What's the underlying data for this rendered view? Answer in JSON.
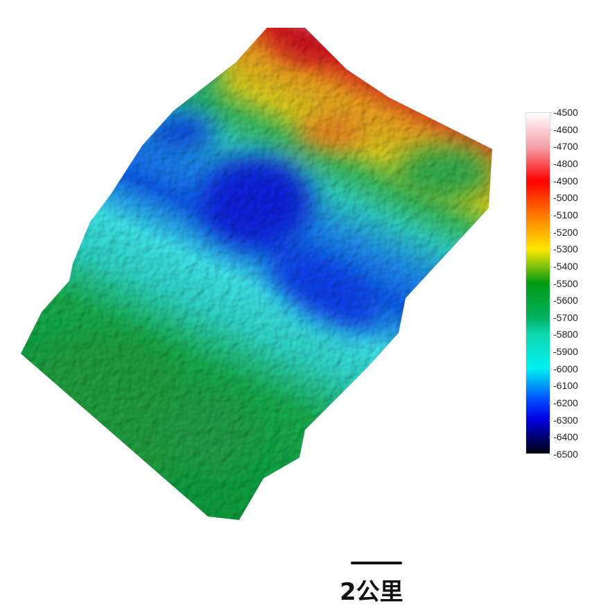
{
  "colorbar": {
    "min": -6500,
    "max": -4500,
    "ticks": [
      "-4500",
      "-4600",
      "-4700",
      "-4800",
      "-4900",
      "-5000",
      "-5100",
      "-5200",
      "-5300",
      "-5400",
      "-5500",
      "-5600",
      "-5700",
      "-5800",
      "-5900",
      "-6000",
      "-6100",
      "-6200",
      "-6300",
      "-6400",
      "-6500"
    ],
    "colors": [
      {
        "value": -4500,
        "color": "#ffffff"
      },
      {
        "value": -4700,
        "color": "#f5a0a8"
      },
      {
        "value": -4900,
        "color": "#ff0000"
      },
      {
        "value": -5100,
        "color": "#ff7a00"
      },
      {
        "value": -5300,
        "color": "#ffe800"
      },
      {
        "value": -5500,
        "color": "#009a14"
      },
      {
        "value": -5700,
        "color": "#00b060"
      },
      {
        "value": -5800,
        "color": "#10d8b0"
      },
      {
        "value": -6000,
        "color": "#00f0f0"
      },
      {
        "value": -6200,
        "color": "#0040ff"
      },
      {
        "value": -6300,
        "color": "#0000e0"
      },
      {
        "value": -6500,
        "color": "#000010"
      }
    ]
  },
  "scale": {
    "label": "2公里"
  }
}
